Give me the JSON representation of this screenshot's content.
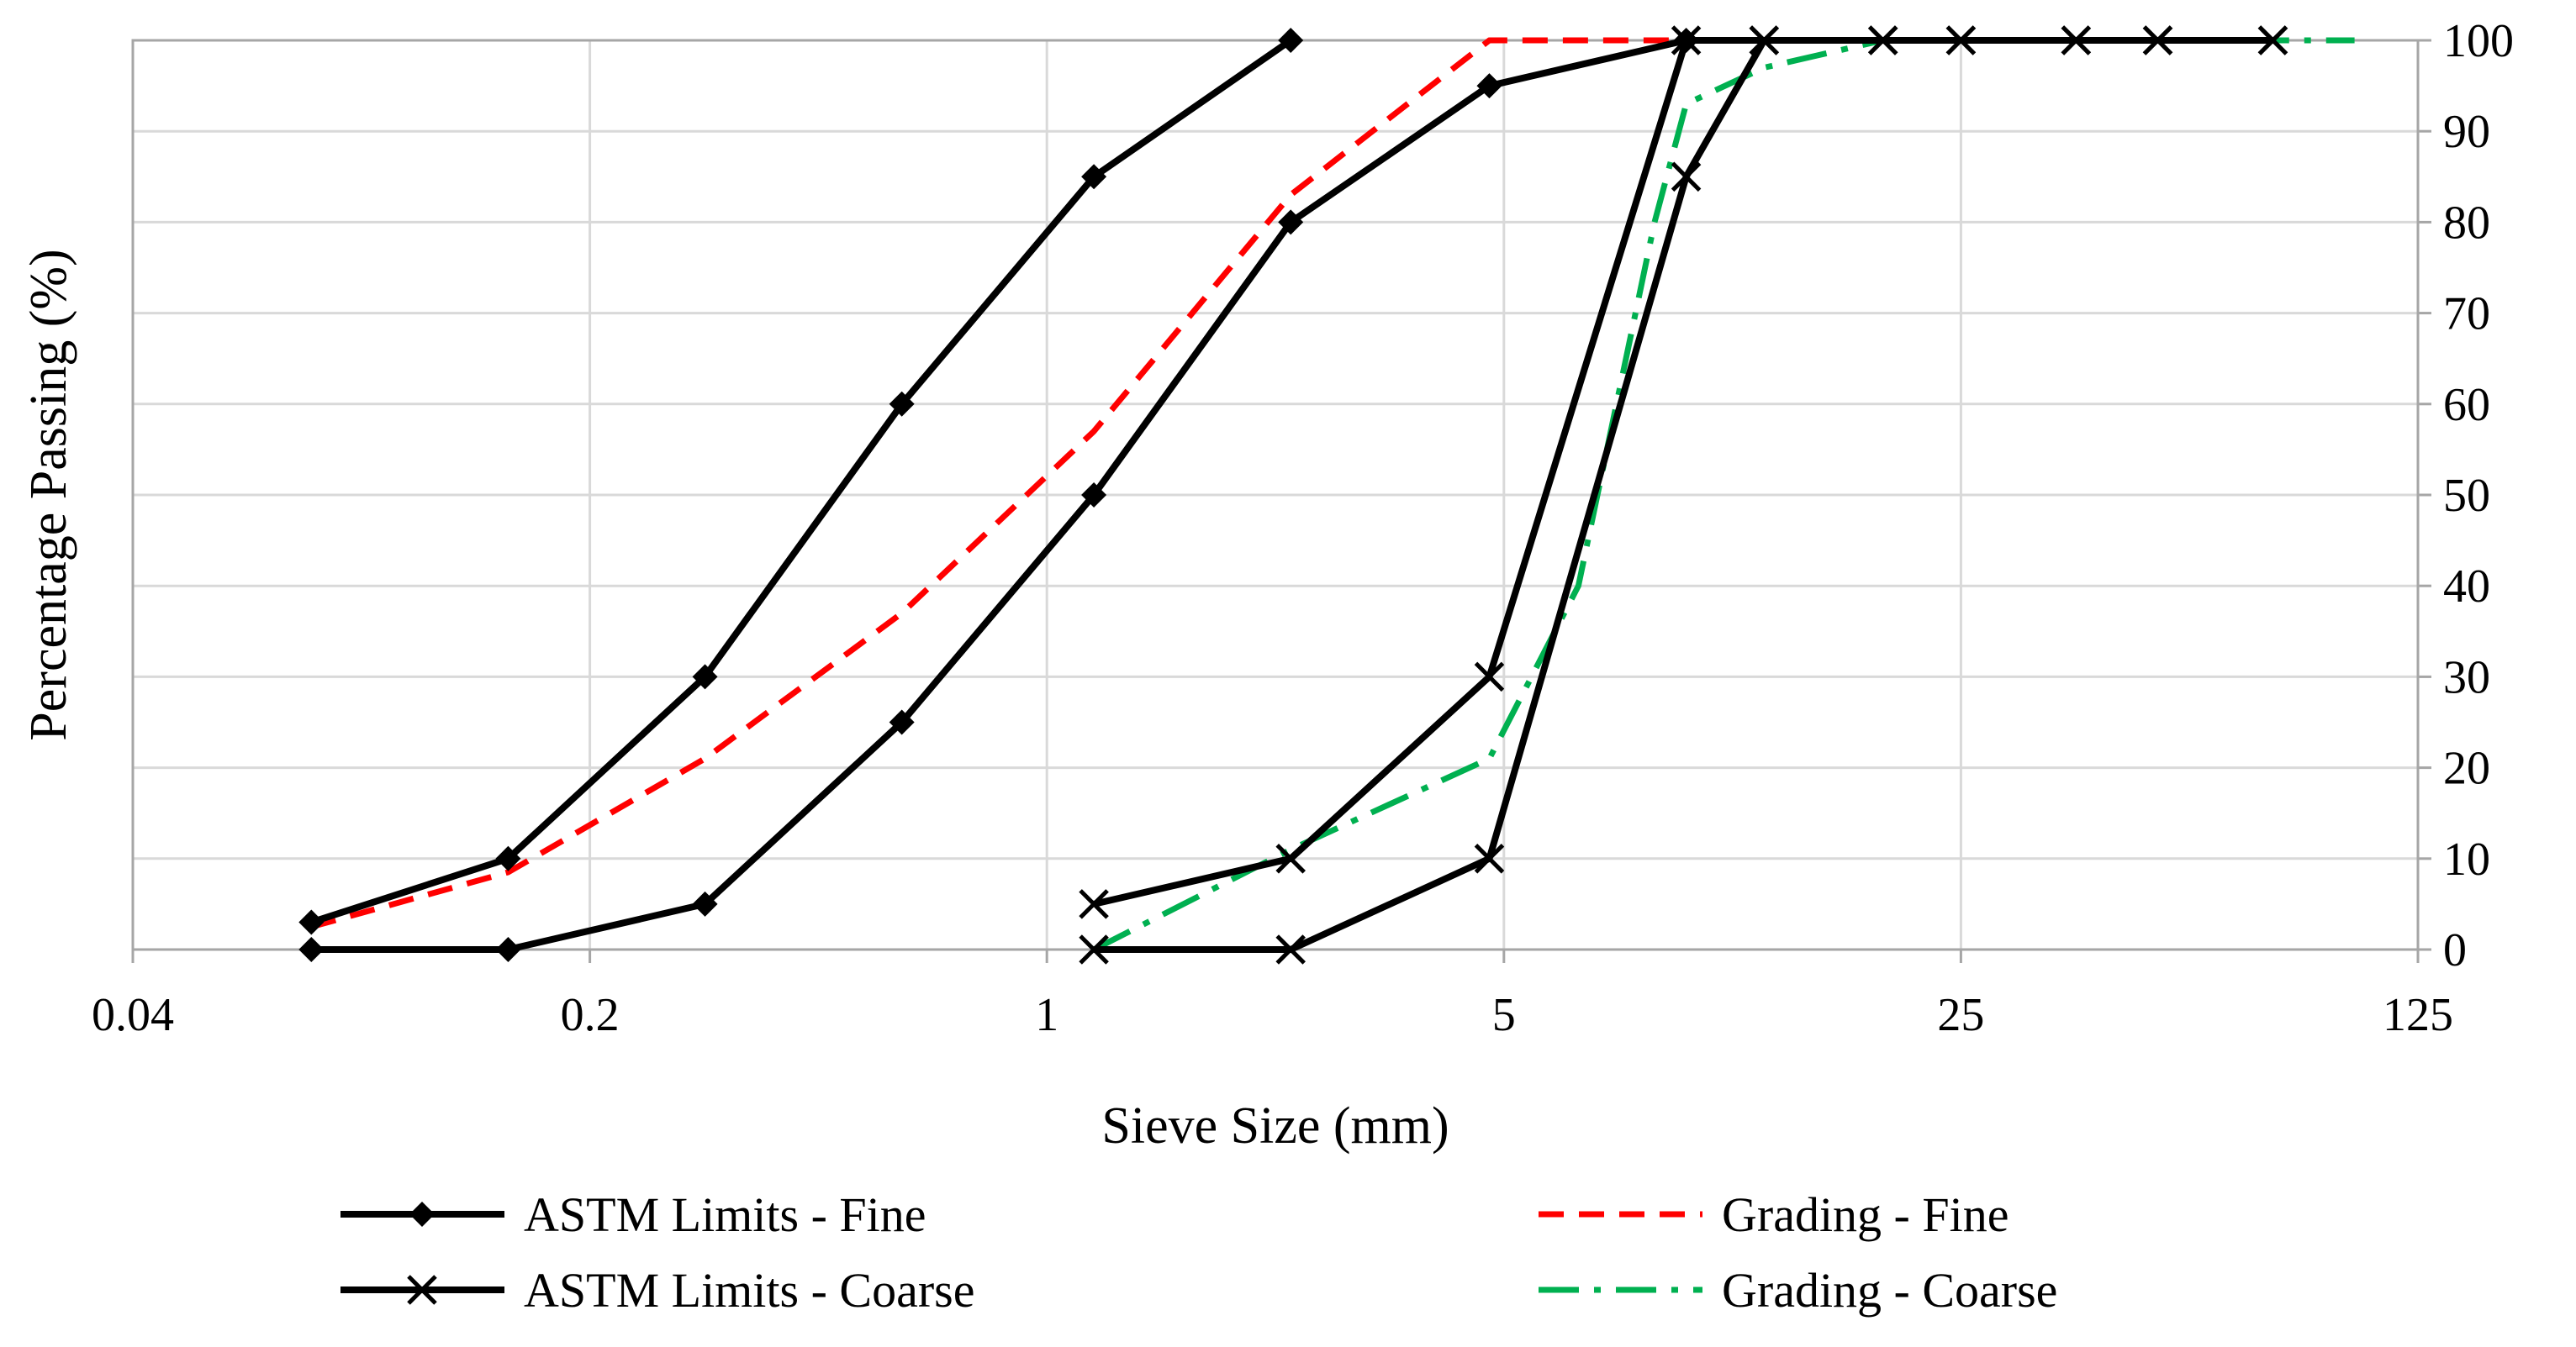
{
  "chart_data": {
    "type": "line",
    "title": "",
    "xlabel": "Sieve Size (mm)",
    "ylabel": "Percentage Passing (%)",
    "x_scale": "log",
    "xlim": [
      0.04,
      125
    ],
    "ylim": [
      0,
      100
    ],
    "x_ticks": [
      {
        "value": 0.04,
        "label": "0.04"
      },
      {
        "value": 0.2,
        "label": "0.2"
      },
      {
        "value": 1,
        "label": "1"
      },
      {
        "value": 5,
        "label": "5"
      },
      {
        "value": 25,
        "label": "25"
      },
      {
        "value": 125,
        "label": "125"
      }
    ],
    "y_ticks": [
      "0",
      "10",
      "20",
      "30",
      "40",
      "50",
      "60",
      "70",
      "80",
      "90",
      "100"
    ],
    "y_axis_side": "right",
    "grid": true,
    "legend_position": "bottom",
    "series": [
      {
        "id": "astm-fine",
        "name": "ASTM Limits - Fine",
        "color": "#000000",
        "dash": "solid",
        "marker": "diamond",
        "lines": [
          {
            "points": [
              [
                0.075,
                3
              ],
              [
                0.15,
                10
              ],
              [
                0.3,
                30
              ],
              [
                0.6,
                60
              ],
              [
                1.18,
                85
              ],
              [
                2.36,
                100
              ]
            ]
          },
          {
            "points": [
              [
                0.075,
                0
              ],
              [
                0.15,
                0
              ],
              [
                0.3,
                5
              ],
              [
                0.6,
                25
              ],
              [
                1.18,
                50
              ],
              [
                2.36,
                80
              ],
              [
                4.75,
                95
              ],
              [
                9.5,
                100
              ]
            ]
          }
        ]
      },
      {
        "id": "astm-coarse",
        "name": "ASTM Limits - Coarse",
        "color": "#000000",
        "dash": "solid",
        "marker": "x",
        "lines": [
          {
            "points": [
              [
                1.18,
                5
              ],
              [
                2.36,
                10
              ],
              [
                4.75,
                30
              ],
              [
                9.5,
                100
              ],
              [
                12.5,
                100
              ],
              [
                19,
                100
              ],
              [
                25,
                100
              ],
              [
                37.5,
                100
              ],
              [
                50,
                100
              ],
              [
                75,
                100
              ]
            ]
          },
          {
            "points": [
              [
                1.18,
                0
              ],
              [
                2.36,
                0
              ],
              [
                4.75,
                10
              ],
              [
                9.5,
                85
              ],
              [
                12.5,
                100
              ],
              [
                19,
                100
              ],
              [
                25,
                100
              ],
              [
                37.5,
                100
              ],
              [
                50,
                100
              ],
              [
                75,
                100
              ]
            ]
          }
        ]
      },
      {
        "id": "grading-fine",
        "name": "Grading - Fine",
        "color": "#ff0000",
        "dash": "dash",
        "marker": "none",
        "lines": [
          {
            "points": [
              [
                0.075,
                2.5
              ],
              [
                0.15,
                8.5
              ],
              [
                0.3,
                21
              ],
              [
                0.6,
                37
              ],
              [
                1.18,
                57
              ],
              [
                2.36,
                83
              ],
              [
                4.75,
                100
              ],
              [
                9.5,
                100
              ]
            ]
          }
        ]
      },
      {
        "id": "grading-coarse",
        "name": "Grading - Coarse",
        "color": "#00b050",
        "dash": "dashdot",
        "marker": "none",
        "lines": [
          {
            "points": [
              [
                1.18,
                0
              ],
              [
                2.36,
                11
              ],
              [
                4.75,
                21
              ],
              [
                6.5,
                40
              ],
              [
                8.5,
                80
              ],
              [
                9.5,
                93
              ],
              [
                12.5,
                97
              ],
              [
                19,
                100
              ],
              [
                25,
                100
              ],
              [
                50,
                100
              ],
              [
                100,
                100
              ]
            ]
          }
        ]
      }
    ]
  }
}
